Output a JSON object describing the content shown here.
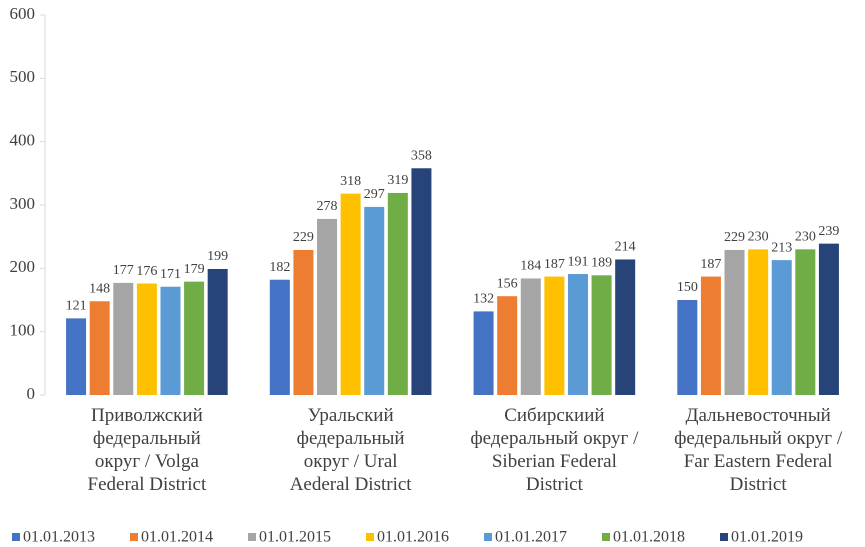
{
  "chart_data": {
    "type": "bar",
    "categories": [
      "Приволжский\nфедеральный\nокруг / Volga\nFederal District",
      "Уральский\nфедеральный\nокруг / Ural\nAederal District",
      "Сибирскиий\nфедеральный округ /\nSiberian Federal\nDistrict",
      "Дальневосточный\nфедеральный округ /\nFar Eastern Federal\nDistrict"
    ],
    "series": [
      {
        "name": "01.01.2013",
        "color": "#4472c4",
        "values": [
          121,
          182,
          132,
          150
        ]
      },
      {
        "name": "01.01.2014",
        "color": "#ed7d31",
        "values": [
          148,
          229,
          156,
          187
        ]
      },
      {
        "name": "01.01.2015",
        "color": "#a5a5a5",
        "values": [
          177,
          278,
          184,
          229
        ]
      },
      {
        "name": "01.01.2016",
        "color": "#ffc000",
        "values": [
          176,
          318,
          187,
          230
        ]
      },
      {
        "name": "01.01.2017",
        "color": "#5b9bd5",
        "values": [
          171,
          297,
          191,
          213
        ]
      },
      {
        "name": "01.01.2018",
        "color": "#70ad47",
        "values": [
          179,
          319,
          189,
          230
        ]
      },
      {
        "name": "01.01.2019",
        "color": "#264478",
        "values": [
          199,
          358,
          214,
          239
        ]
      }
    ],
    "ylim": [
      0,
      600
    ],
    "yticks": [
      0,
      100,
      200,
      300,
      400,
      500,
      600
    ],
    "grid": false,
    "legend": "bottom"
  }
}
